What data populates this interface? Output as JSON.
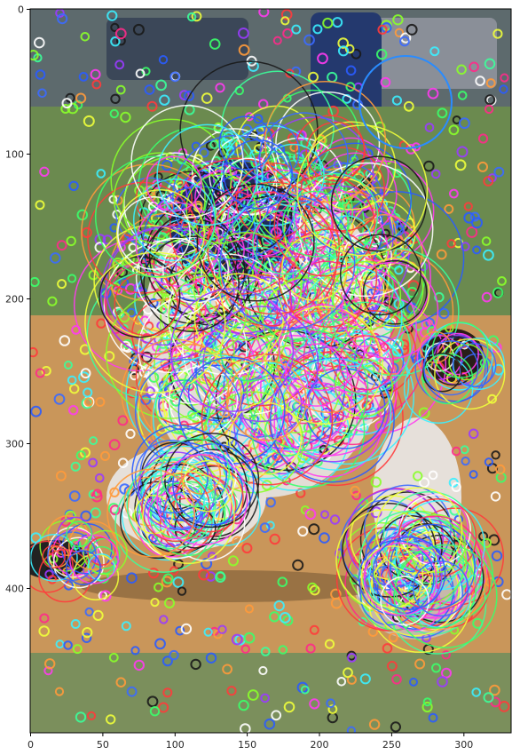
{
  "figure": {
    "x_axis": {
      "range": [
        0,
        333
      ],
      "ticks": [
        0,
        50,
        100,
        150,
        200,
        250,
        300
      ]
    },
    "y_axis": {
      "range": [
        0,
        500
      ],
      "ticks": [
        0,
        100,
        200,
        300,
        400
      ],
      "direction": "down"
    }
  },
  "photo": {
    "scene": "baseball pitcher mid-delivery on a dirt mound",
    "colors": {
      "grass": "#6f8a55",
      "dirt": "#c9965a",
      "jersey": "#e8e4e0",
      "cap": "#1f2c5a",
      "skin": "#b57c5a"
    }
  },
  "overlay": {
    "description": "multi-scale feature keypoints drawn as colored circles",
    "palette": [
      "#ff3b3b",
      "#3bff6a",
      "#3b6aff",
      "#ff3bf0",
      "#3bf0ff",
      "#f0ff3b",
      "#ff9a3b",
      "#9a3bff",
      "#3bff9a",
      "#ffffff",
      "#1a1a1a",
      "#2a5cff",
      "#ff2a8a",
      "#8aff2a"
    ]
  }
}
